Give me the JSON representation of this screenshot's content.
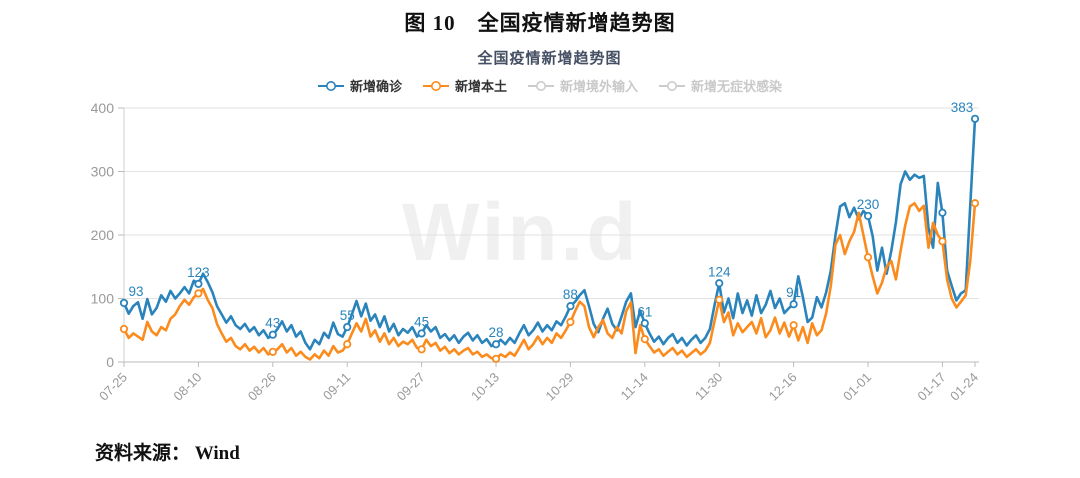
{
  "doc_title": "图 10　全国疫情新增趋势图",
  "source_note": "资料来源： Wind",
  "watermark": "Win.d",
  "chart_data": {
    "type": "line",
    "title": "全国疫情新增趋势图",
    "legend_position": "top",
    "grid": true,
    "ylim": [
      0,
      400
    ],
    "y_ticks": [
      0,
      100,
      200,
      300,
      400
    ],
    "days_total": 183,
    "x_ticks": [
      {
        "day": 0,
        "label": "07-25"
      },
      {
        "day": 16,
        "label": "08-10"
      },
      {
        "day": 32,
        "label": "08-26"
      },
      {
        "day": 48,
        "label": "09-11"
      },
      {
        "day": 64,
        "label": "09-27"
      },
      {
        "day": 80,
        "label": "10-13"
      },
      {
        "day": 96,
        "label": "10-29"
      },
      {
        "day": 112,
        "label": "11-14"
      },
      {
        "day": 128,
        "label": "11-30"
      },
      {
        "day": 144,
        "label": "12-16"
      },
      {
        "day": 160,
        "label": "01-01"
      },
      {
        "day": 176,
        "label": "01-17"
      },
      {
        "day": 183,
        "label": "01-24"
      }
    ],
    "marker_days": [
      0,
      16,
      32,
      48,
      64,
      80,
      96,
      112,
      128,
      144,
      160,
      176,
      183
    ],
    "point_labels": {
      "0": "93",
      "16": "123",
      "32": "43",
      "48": "55",
      "64": "45",
      "80": "28",
      "96": "88",
      "112": "61",
      "128": "124",
      "144": "91",
      "160": "230",
      "183": "383"
    },
    "legend": [
      {
        "id": "new-confirmed",
        "label": "新增确诊",
        "color": "#2A84BB",
        "active": true
      },
      {
        "id": "new-local",
        "label": "新增本土",
        "color": "#FB8B1C",
        "active": true
      },
      {
        "id": "new-imported",
        "label": "新增境外输入",
        "color": "#CCCCCC",
        "active": false
      },
      {
        "id": "new-asymptomatic",
        "label": "新增无症状感染",
        "color": "#CCCCCC",
        "active": false
      }
    ],
    "series": [
      {
        "id": "new-confirmed",
        "name": "新增确诊",
        "color": "#2A84BB",
        "labeled": true,
        "values": [
          93,
          76,
          88,
          94,
          68,
          99,
          75,
          85,
          105,
          95,
          112,
          100,
          108,
          118,
          108,
          128,
          123,
          139,
          126,
          110,
          88,
          75,
          62,
          72,
          58,
          52,
          60,
          48,
          55,
          42,
          50,
          38,
          43,
          52,
          64,
          48,
          58,
          40,
          48,
          30,
          20,
          35,
          28,
          46,
          38,
          62,
          44,
          40,
          55,
          75,
          96,
          72,
          92,
          65,
          75,
          55,
          72,
          48,
          60,
          42,
          52,
          46,
          55,
          40,
          45,
          58,
          48,
          55,
          38,
          44,
          34,
          42,
          30,
          40,
          46,
          34,
          42,
          30,
          36,
          25,
          28,
          35,
          28,
          38,
          30,
          45,
          58,
          42,
          50,
          62,
          48,
          58,
          50,
          64,
          58,
          72,
          88,
          95,
          105,
          113,
          88,
          60,
          47,
          68,
          84,
          60,
          50,
          72,
          95,
          108,
          55,
          81,
          61,
          45,
          32,
          40,
          28,
          38,
          44,
          30,
          38,
          26,
          35,
          42,
          30,
          38,
          52,
          90,
          124,
          78,
          100,
          69,
          108,
          77,
          97,
          73,
          105,
          77,
          90,
          112,
          85,
          100,
          77,
          85,
          91,
          135,
          102,
          63,
          70,
          102,
          86,
          110,
          144,
          200,
          245,
          250,
          228,
          243,
          225,
          238,
          230,
          198,
          144,
          180,
          139,
          175,
          220,
          280,
          300,
          287,
          295,
          290,
          293,
          211,
          180,
          282,
          235,
          144,
          120,
          97,
          108,
          113,
          248,
          383
        ]
      },
      {
        "id": "new-local",
        "name": "新增本土",
        "color": "#FB8B1C",
        "labeled": false,
        "values": [
          52,
          38,
          45,
          40,
          35,
          63,
          48,
          42,
          55,
          50,
          68,
          75,
          88,
          98,
          90,
          102,
          108,
          115,
          98,
          85,
          60,
          45,
          32,
          38,
          25,
          20,
          28,
          18,
          24,
          15,
          22,
          12,
          16,
          20,
          28,
          15,
          22,
          10,
          16,
          8,
          4,
          12,
          6,
          18,
          10,
          25,
          15,
          18,
          28,
          45,
          61,
          48,
          68,
          40,
          50,
          32,
          45,
          28,
          38,
          25,
          32,
          28,
          35,
          22,
          20,
          35,
          25,
          30,
          18,
          24,
          14,
          20,
          12,
          18,
          22,
          12,
          16,
          8,
          12,
          6,
          5,
          12,
          8,
          15,
          10,
          22,
          35,
          20,
          28,
          40,
          28,
          38,
          30,
          45,
          38,
          50,
          63,
          80,
          95,
          88,
          55,
          39,
          55,
          66,
          45,
          38,
          55,
          45,
          80,
          94,
          14,
          58,
          36,
          25,
          15,
          20,
          10,
          16,
          22,
          12,
          18,
          8,
          14,
          20,
          12,
          18,
          30,
          65,
          98,
          63,
          78,
          42,
          61,
          47,
          55,
          63,
          45,
          69,
          39,
          50,
          70,
          45,
          62,
          40,
          58,
          34,
          55,
          30,
          61,
          42,
          50,
          77,
          120,
          185,
          200,
          170,
          190,
          205,
          235,
          200,
          165,
          135,
          108,
          125,
          150,
          159,
          130,
          175,
          215,
          245,
          250,
          238,
          246,
          180,
          219,
          200,
          190,
          130,
          100,
          86,
          95,
          105,
          160,
          250
        ]
      }
    ],
    "axis_colors": {
      "grid": "#E2E2E2",
      "axis_line": "#BBBBBB",
      "tick": "#BBBBBB",
      "tick_label": "#999999"
    }
  }
}
